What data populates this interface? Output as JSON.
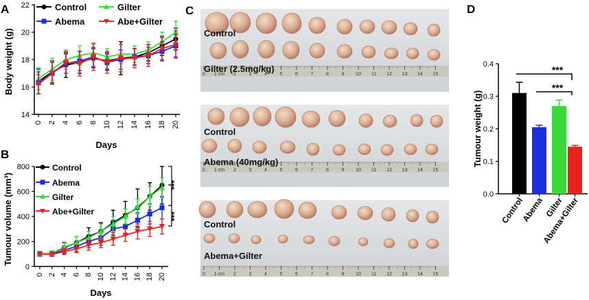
{
  "panel_letters": {
    "a": "A",
    "b": "B",
    "c": "C",
    "d": "D"
  },
  "colors": {
    "control": "#000000",
    "abema": "#1a2ee0",
    "gilter": "#3ad83a",
    "combo": "#e8231f"
  },
  "photo_labels": {
    "row1_top": "Control",
    "row1_bottom": "Gilter (2.5mg/kg)",
    "row2_top": "Control",
    "row2_bottom": "Abema (40mg/kg)",
    "row3_top": "Control",
    "row3_bottom": "Abema+Gilter"
  },
  "ruler_labels": [
    "0",
    "1 cm",
    "2",
    "3",
    "4",
    "5",
    "6",
    "7",
    "8",
    "9",
    "10",
    "11",
    "12",
    "13",
    "14",
    "15"
  ],
  "chart_data": [
    {
      "id": "A",
      "type": "line",
      "xlabel": "Days",
      "ylabel": "Body weight (g)",
      "ylim": [
        14,
        22
      ],
      "yticks": [
        14,
        16,
        18,
        20,
        22
      ],
      "x": [
        0,
        2,
        4,
        6,
        8,
        10,
        12,
        14,
        16,
        18,
        20
      ],
      "legend": [
        "Control",
        "Gilter",
        "Abema",
        "Abe+Gilter"
      ],
      "series": [
        {
          "name": "Control",
          "color": "#000000",
          "marker": "circle",
          "values": [
            16.4,
            17.1,
            17.6,
            17.8,
            18.1,
            17.9,
            18.1,
            18.2,
            18.5,
            19.0,
            19.5
          ],
          "errors": [
            0.9,
            0.8,
            0.9,
            0.8,
            0.7,
            0.6,
            1.2,
            0.6,
            0.6,
            0.7,
            0.8
          ]
        },
        {
          "name": "Gilter",
          "color": "#3ad83a",
          "marker": "triangle",
          "values": [
            16.6,
            17.3,
            18.0,
            18.3,
            18.5,
            18.2,
            18.4,
            18.4,
            18.7,
            19.3,
            20.0
          ],
          "errors": [
            0.8,
            0.8,
            0.7,
            0.7,
            0.6,
            0.6,
            0.7,
            0.6,
            0.6,
            0.7,
            0.8
          ]
        },
        {
          "name": "Abema",
          "color": "#1a2ee0",
          "marker": "square",
          "values": [
            16.3,
            17.0,
            17.7,
            17.9,
            18.2,
            17.8,
            18.0,
            18.2,
            18.3,
            18.6,
            19.0
          ],
          "errors": [
            0.8,
            0.8,
            0.7,
            0.7,
            0.7,
            0.6,
            0.7,
            0.6,
            0.6,
            0.7,
            0.8
          ]
        },
        {
          "name": "Abe+Gilter",
          "color": "#e8231f",
          "marker": "inverted-triangle",
          "values": [
            16.2,
            17.0,
            17.8,
            17.7,
            18.2,
            17.8,
            18.1,
            18.1,
            18.3,
            18.8,
            19.1
          ],
          "errors": [
            0.7,
            0.8,
            0.8,
            0.9,
            1.0,
            0.8,
            1.0,
            0.7,
            0.8,
            0.8,
            1.0
          ]
        }
      ]
    },
    {
      "id": "B",
      "type": "line",
      "xlabel": "Days",
      "ylabel": "Tumour volume (mm³)",
      "ylim": [
        0,
        800
      ],
      "yticks": [
        0,
        200,
        400,
        600,
        800
      ],
      "x": [
        0,
        2,
        4,
        6,
        8,
        10,
        12,
        14,
        16,
        18,
        20
      ],
      "legend": [
        "Control",
        "Abema",
        "Gilter",
        "Abe+Gilter"
      ],
      "series": [
        {
          "name": "Control",
          "color": "#000000",
          "marker": "circle",
          "values": [
            100,
            105,
            150,
            190,
            240,
            280,
            350,
            410,
            470,
            560,
            650
          ],
          "errors": [
            20,
            20,
            40,
            50,
            70,
            70,
            100,
            110,
            150,
            110,
            150
          ]
        },
        {
          "name": "Abema",
          "color": "#1a2ee0",
          "marker": "square",
          "values": [
            100,
            100,
            130,
            160,
            200,
            230,
            300,
            320,
            370,
            420,
            470
          ],
          "errors": [
            15,
            15,
            30,
            40,
            50,
            60,
            70,
            70,
            60,
            80,
            90
          ]
        },
        {
          "name": "Gilter",
          "color": "#3ad83a",
          "marker": "triangle",
          "values": [
            100,
            105,
            155,
            190,
            230,
            280,
            340,
            400,
            480,
            560,
            630
          ],
          "errors": [
            20,
            20,
            40,
            50,
            50,
            60,
            60,
            60,
            60,
            80,
            80
          ]
        },
        {
          "name": "Abe+Gilter",
          "color": "#e8231f",
          "marker": "inverted-triangle",
          "values": [
            100,
            95,
            120,
            140,
            170,
            190,
            220,
            250,
            280,
            300,
            320
          ],
          "errors": [
            15,
            15,
            25,
            30,
            40,
            40,
            50,
            50,
            60,
            60,
            60
          ]
        }
      ],
      "annotations": [
        "***",
        "***"
      ]
    },
    {
      "id": "D",
      "type": "bar",
      "ylabel": "Tumour weight (g)",
      "ylim": [
        0,
        0.4
      ],
      "yticks": [
        "0.0",
        "0.1",
        "0.2",
        "0.3",
        "0.4"
      ],
      "categories": [
        "Control",
        "Abema",
        "Gilter",
        "Abema+Gilter"
      ],
      "values": [
        0.31,
        0.205,
        0.27,
        0.145
      ],
      "errors": [
        0.033,
        0.006,
        0.018,
        0.004
      ],
      "colors": [
        "#000000",
        "#1a2ee0",
        "#3ad83a",
        "#e8231f"
      ],
      "annotations": [
        "***",
        "***"
      ]
    }
  ]
}
